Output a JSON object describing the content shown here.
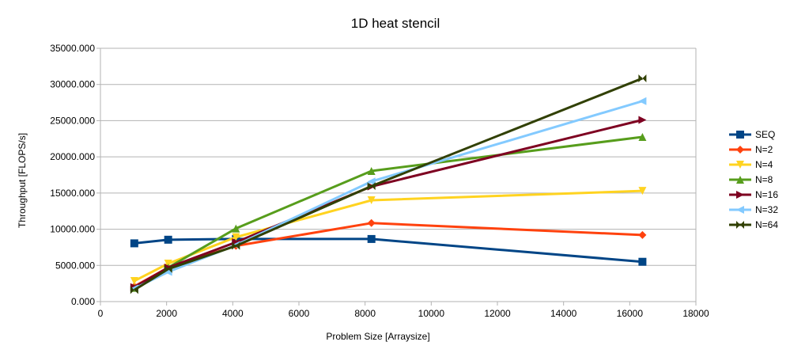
{
  "chart_data": {
    "type": "line",
    "title": "1D heat stencil",
    "xlabel": "Problem Size [Arraysize]",
    "ylabel": "Throughput [FLOPS/s]",
    "xlim": [
      0,
      18000
    ],
    "ylim": [
      0,
      35000
    ],
    "x_ticks": [
      0,
      2000,
      4000,
      6000,
      8000,
      10000,
      12000,
      14000,
      16000,
      18000
    ],
    "x_tick_labels": [
      "0",
      "2000",
      "4000",
      "6000",
      "8000",
      "10000",
      "12000",
      "14000",
      "16000",
      "18000"
    ],
    "y_ticks": [
      0,
      5000,
      10000,
      15000,
      20000,
      25000,
      30000,
      35000
    ],
    "y_tick_labels": [
      "0.000",
      "5000.000",
      "10000.000",
      "15000.000",
      "20000.000",
      "25000.000",
      "30000.000",
      "35000.000"
    ],
    "grid": "horizontal",
    "legend_position": "right",
    "x": [
      1024,
      2048,
      4096,
      8192,
      16384
    ],
    "series": [
      {
        "name": "SEQ",
        "color": "#004586",
        "marker": "square",
        "values": [
          8050,
          8550,
          8650,
          8650,
          5500
        ]
      },
      {
        "name": "N=2",
        "color": "#ff420e",
        "marker": "diamond",
        "values": [
          2100,
          4700,
          7700,
          10850,
          9200
        ]
      },
      {
        "name": "N=4",
        "color": "#ffd320",
        "marker": "triangle-down",
        "values": [
          2850,
          5250,
          8900,
          14000,
          15300
        ]
      },
      {
        "name": "N=8",
        "color": "#579d1c",
        "marker": "triangle-up",
        "values": [
          1900,
          4700,
          10100,
          18050,
          22750
        ]
      },
      {
        "name": "N=16",
        "color": "#7e0021",
        "marker": "triangle-right",
        "values": [
          2000,
          4700,
          8200,
          15900,
          25100
        ]
      },
      {
        "name": "N=32",
        "color": "#83caff",
        "marker": "triangle-left",
        "values": [
          1800,
          4100,
          7800,
          16600,
          27700
        ]
      },
      {
        "name": "N=64",
        "color": "#314004",
        "marker": "bowtie",
        "values": [
          1600,
          4500,
          7700,
          15950,
          30850
        ]
      }
    ]
  }
}
